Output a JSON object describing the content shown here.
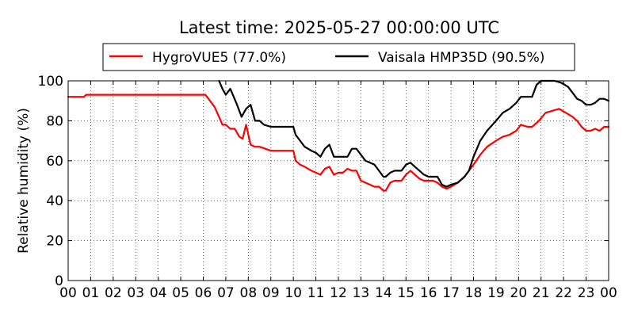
{
  "chart_data": {
    "type": "line",
    "title": "Latest time: 2025-05-27 00:00:00 UTC",
    "xlabel": "",
    "ylabel": "Relative humidity (%)",
    "ylim": [
      0,
      100
    ],
    "xlim": [
      0,
      24
    ],
    "grid": true,
    "legend_position": "top",
    "x_ticks": [
      "00",
      "01",
      "02",
      "03",
      "04",
      "05",
      "06",
      "07",
      "08",
      "09",
      "10",
      "11",
      "12",
      "13",
      "14",
      "15",
      "16",
      "17",
      "18",
      "19",
      "20",
      "21",
      "22",
      "23",
      "00"
    ],
    "y_ticks": [
      "0",
      "20",
      "40",
      "60",
      "80",
      "100"
    ],
    "series": [
      {
        "name": "HygroVUE5 (77.0%)",
        "color": "#ff0000",
        "x": [
          0,
          0.7,
          0.8,
          1.0,
          2.0,
          3.0,
          4.0,
          5.0,
          5.95,
          6.1,
          6.3,
          6.5,
          6.7,
          6.85,
          7.0,
          7.2,
          7.4,
          7.6,
          7.75,
          7.9,
          8.1,
          8.3,
          8.5,
          9.0,
          9.5,
          10.0,
          10.1,
          10.3,
          10.5,
          10.8,
          11.0,
          11.2,
          11.4,
          11.6,
          11.8,
          12.0,
          12.2,
          12.4,
          12.6,
          12.8,
          13.0,
          13.2,
          13.4,
          13.6,
          13.8,
          14.0,
          14.1,
          14.3,
          14.5,
          14.8,
          15.0,
          15.2,
          15.4,
          15.6,
          15.8,
          16.0,
          16.2,
          16.4,
          16.6,
          16.8,
          17.0,
          17.3,
          17.6,
          17.8,
          18.0,
          18.3,
          18.6,
          19.0,
          19.3,
          19.6,
          19.9,
          20.1,
          20.4,
          20.6,
          20.9,
          21.2,
          21.5,
          21.8,
          22.1,
          22.4,
          22.6,
          22.8,
          23.0,
          23.2,
          23.4,
          23.6,
          23.8,
          24.0
        ],
        "y": [
          92,
          92,
          93,
          93,
          93,
          93,
          93,
          93,
          93,
          93,
          90,
          87,
          82,
          78,
          78,
          76,
          76,
          72,
          71,
          78,
          68,
          67,
          67,
          65,
          65,
          65,
          60,
          58,
          57,
          55,
          54,
          53,
          56,
          57,
          53,
          54,
          54,
          56,
          55,
          55,
          50,
          49,
          48,
          47,
          47,
          45,
          45,
          49,
          50,
          50,
          53,
          55,
          53,
          51,
          50,
          50,
          50,
          49,
          47,
          46,
          47,
          49,
          52,
          55,
          58,
          63,
          67,
          70,
          72,
          73,
          75,
          78,
          77,
          77,
          80,
          84,
          85,
          86,
          84,
          82,
          80,
          77,
          75,
          75,
          76,
          75,
          77,
          77
        ]
      },
      {
        "name": "Vaisala HMP35D (90.5%)",
        "color": "#000000",
        "x": [
          6.7,
          6.85,
          7.0,
          7.2,
          7.35,
          7.5,
          7.7,
          7.9,
          8.1,
          8.3,
          8.5,
          8.7,
          9.0,
          9.3,
          9.6,
          10.0,
          10.1,
          10.3,
          10.5,
          10.8,
          11.0,
          11.2,
          11.4,
          11.6,
          11.8,
          12.0,
          12.2,
          12.4,
          12.6,
          12.8,
          13.0,
          13.2,
          13.4,
          13.6,
          13.8,
          14.0,
          14.1,
          14.3,
          14.5,
          14.8,
          15.0,
          15.2,
          15.4,
          15.6,
          15.8,
          16.0,
          16.2,
          16.4,
          16.6,
          16.8,
          17.0,
          17.3,
          17.6,
          17.8,
          18.0,
          18.3,
          18.6,
          19.0,
          19.3,
          19.6,
          19.9,
          20.1,
          20.4,
          20.6,
          20.8,
          21.0,
          21.3,
          21.6,
          21.9,
          22.2,
          22.4,
          22.6,
          22.8,
          23.0,
          23.2,
          23.4,
          23.6,
          23.8,
          24.0
        ],
        "y": [
          100,
          96,
          93,
          96,
          92,
          88,
          82,
          86,
          88,
          80,
          80,
          78,
          77,
          77,
          77,
          77,
          73,
          70,
          67,
          65,
          64,
          62,
          66,
          68,
          62,
          62,
          62,
          62,
          66,
          66,
          63,
          60,
          59,
          58,
          55,
          52,
          52,
          54,
          55,
          55,
          58,
          59,
          57,
          55,
          53,
          52,
          52,
          52,
          48,
          47,
          48,
          49,
          52,
          55,
          62,
          70,
          75,
          80,
          84,
          86,
          89,
          92,
          92,
          92,
          98,
          100,
          100,
          100,
          99,
          97,
          94,
          91,
          90,
          88,
          88,
          89,
          91,
          91,
          90
        ]
      }
    ]
  }
}
